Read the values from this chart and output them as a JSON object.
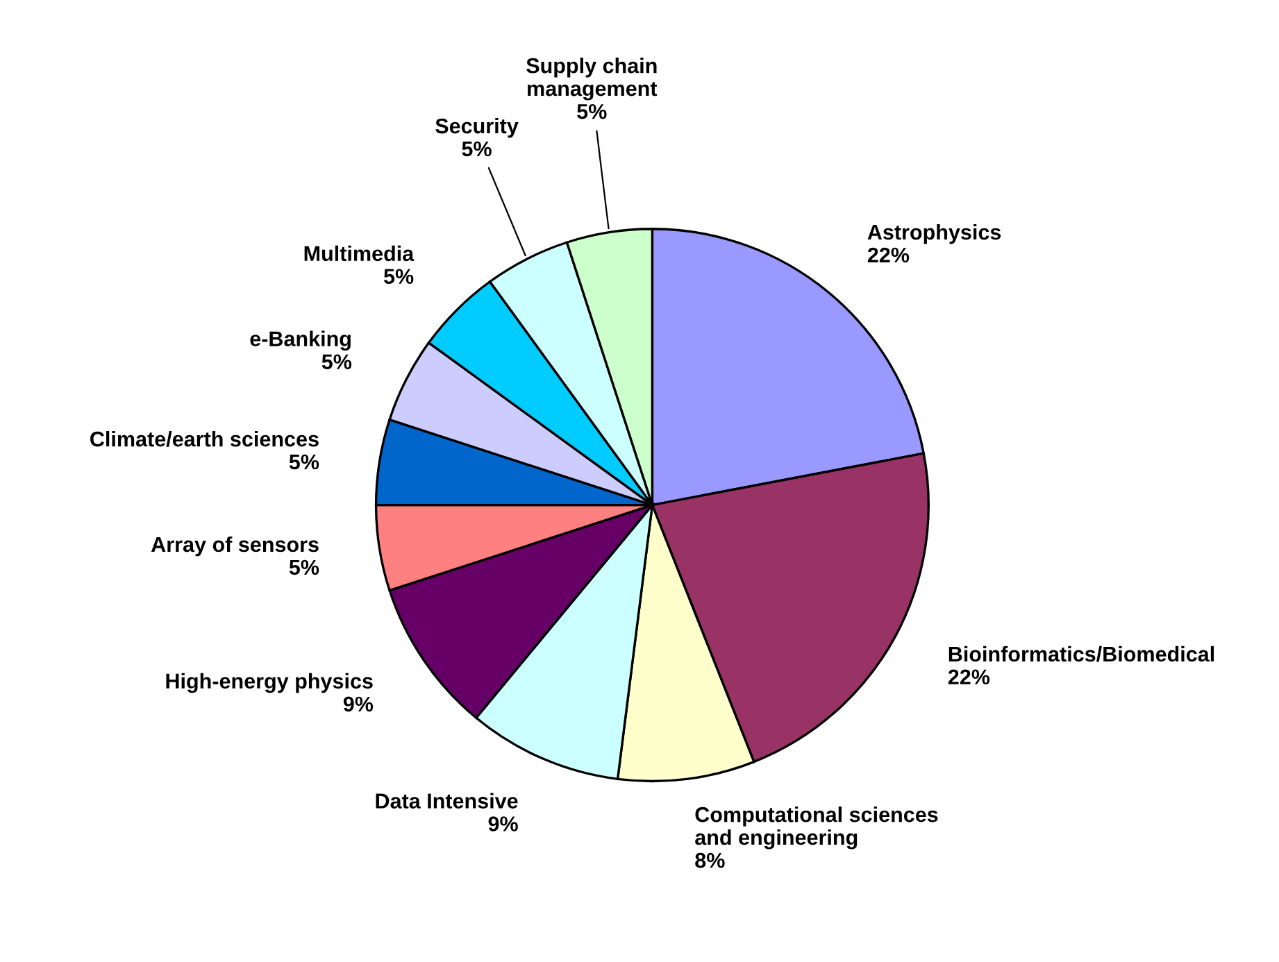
{
  "chart_data": {
    "type": "pie",
    "categories": [
      "Astrophysics",
      "Bioinformatics/Biomedical",
      "Computational sciences\nand engineering",
      "Data Intensive",
      "High-energy physics",
      "Array of sensors",
      "Climate/earth sciences",
      "e-Banking",
      "Multimedia",
      "Security",
      "Supply chain\nmanagement"
    ],
    "values": [
      22,
      22,
      8,
      9,
      9,
      5,
      5,
      5,
      5,
      5,
      5
    ],
    "value_labels": [
      "22%",
      "22%",
      "8%",
      "9%",
      "9%",
      "5%",
      "5%",
      "5%",
      "5%",
      "5%",
      "5%"
    ],
    "colors": [
      "#9999ff",
      "#993366",
      "#ffffcc",
      "#ccffff",
      "#660066",
      "#ff8080",
      "#0066cc",
      "#ccccff",
      "#00ccff",
      "#ccffff",
      "#ccffcc"
    ]
  }
}
